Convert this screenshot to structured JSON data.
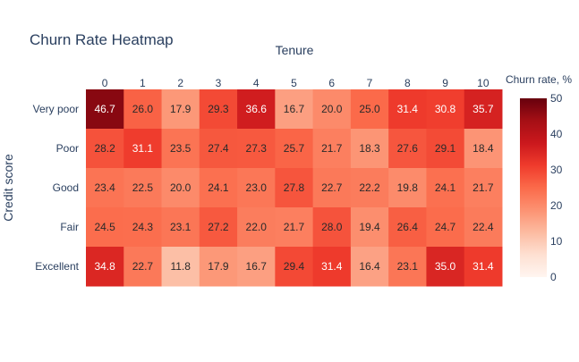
{
  "chart_data": {
    "type": "heatmap",
    "title": "Churn Rate Heatmap",
    "xlabel": "Tenure",
    "ylabel": "Credit score",
    "x": [
      "0",
      "1",
      "2",
      "3",
      "4",
      "5",
      "6",
      "7",
      "8",
      "9",
      "10"
    ],
    "y": [
      "Very poor",
      "Poor",
      "Good",
      "Fair",
      "Excellent"
    ],
    "z": [
      [
        46.7,
        26.0,
        17.9,
        29.3,
        36.6,
        16.7,
        20.0,
        25.0,
        31.4,
        30.8,
        35.7
      ],
      [
        28.2,
        31.1,
        23.5,
        27.4,
        27.3,
        25.7,
        21.7,
        18.3,
        27.6,
        29.1,
        18.4
      ],
      [
        23.4,
        22.5,
        20.0,
        24.1,
        23.0,
        27.8,
        22.7,
        22.2,
        19.8,
        24.1,
        21.7
      ],
      [
        24.5,
        24.3,
        23.1,
        27.2,
        22.0,
        21.7,
        28.0,
        19.4,
        26.4,
        24.7,
        22.4
      ],
      [
        34.8,
        22.7,
        11.8,
        17.9,
        16.7,
        29.4,
        31.4,
        16.4,
        23.1,
        35.0,
        31.4
      ]
    ],
    "colorbar": {
      "title": "Churn rate, %",
      "min": 0,
      "max": 50,
      "ticks": [
        0,
        10,
        20,
        30,
        40,
        50
      ]
    },
    "colorscale": "Reds",
    "grid": false,
    "legend": "right"
  }
}
